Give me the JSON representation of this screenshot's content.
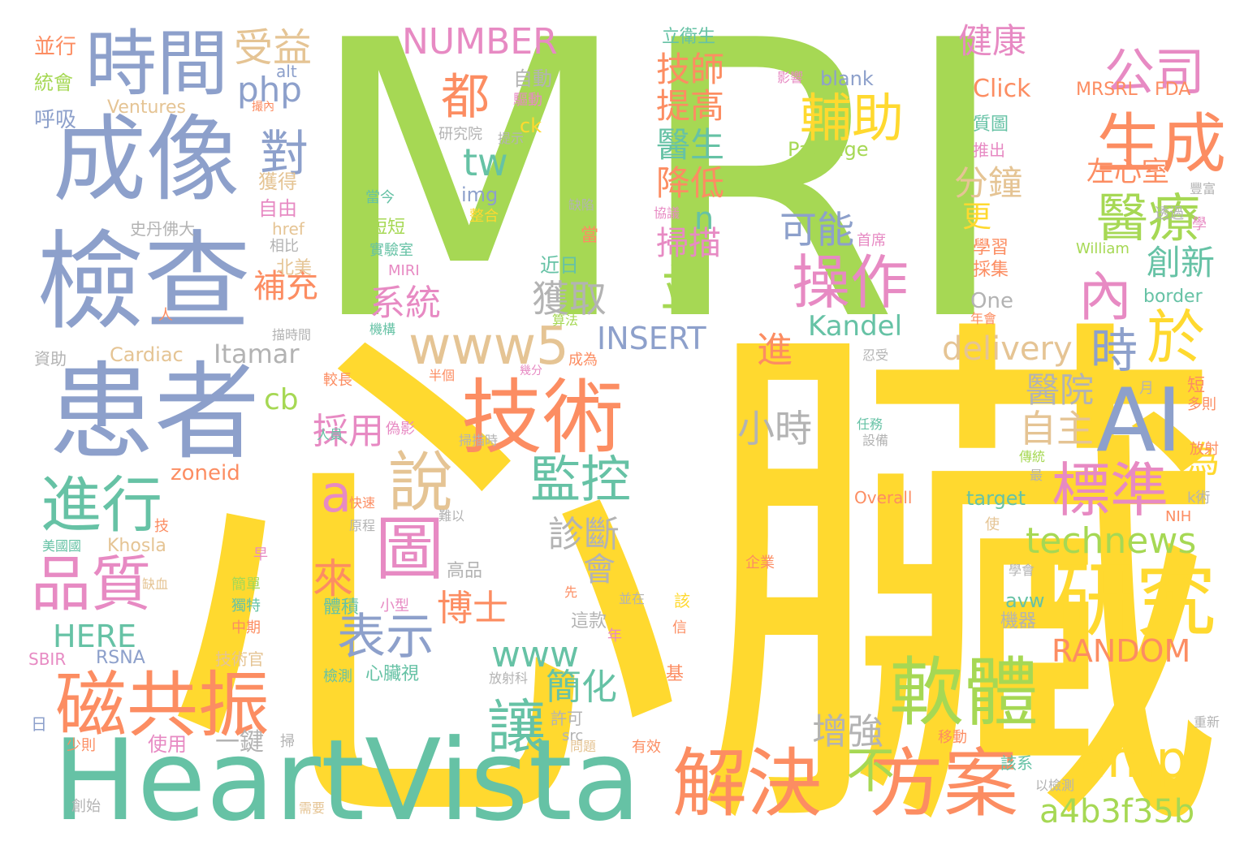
{
  "palette": {
    "green": "#a6d854",
    "yellow": "#ffd92f",
    "blue": "#8da0cb",
    "teal": "#66c2a5",
    "orange": "#fc8d62",
    "pink": "#e78ac3",
    "tan": "#e5c494",
    "gray": "#b3b3b3",
    "background": "#ffffff"
  },
  "words": [
    {
      "text": "MRI",
      "color": "green"
    },
    {
      "text": "心臟",
      "color": "yellow"
    },
    {
      "text": "HeartVista",
      "color": "teal"
    },
    {
      "text": "成像",
      "color": "blue"
    },
    {
      "text": "檢查",
      "color": "blue"
    },
    {
      "text": "患者",
      "color": "blue"
    },
    {
      "text": "時間",
      "color": "blue"
    },
    {
      "text": "技術",
      "color": "orange"
    },
    {
      "text": "AI",
      "color": "blue"
    },
    {
      "text": "研究",
      "color": "yellow"
    },
    {
      "text": "軟體",
      "color": "green"
    },
    {
      "text": "方案",
      "color": "orange"
    },
    {
      "text": "解決",
      "color": "orange"
    },
    {
      "text": "磁共振",
      "color": "orange"
    },
    {
      "text": "生成",
      "color": "orange"
    },
    {
      "text": "醫療",
      "color": "green"
    },
    {
      "text": "標準",
      "color": "pink"
    },
    {
      "text": "操作",
      "color": "pink"
    },
    {
      "text": "輔助",
      "color": "yellow"
    },
    {
      "text": "公司",
      "color": "pink"
    },
    {
      "text": "都",
      "color": "orange"
    },
    {
      "text": "對",
      "color": "blue"
    },
    {
      "text": "受益",
      "color": "tan"
    },
    {
      "text": "php",
      "color": "blue"
    },
    {
      "text": "NUMBER",
      "color": "pink"
    },
    {
      "text": "健康",
      "color": "pink"
    },
    {
      "text": "進行",
      "color": "teal"
    },
    {
      "text": "品質",
      "color": "pink"
    },
    {
      "text": "說",
      "color": "tan"
    },
    {
      "text": "a",
      "color": "pink"
    },
    {
      "text": "圖",
      "color": "pink"
    },
    {
      "text": "監控",
      "color": "teal"
    },
    {
      "text": "www5",
      "color": "tan"
    },
    {
      "text": "並",
      "color": "green"
    },
    {
      "text": "內",
      "color": "pink"
    },
    {
      "text": "於",
      "color": "yellow"
    },
    {
      "text": "時",
      "color": "blue"
    },
    {
      "text": "amp",
      "color": "yellow"
    },
    {
      "text": "a4b3f35b",
      "color": "green"
    },
    {
      "text": "technews",
      "color": "green"
    },
    {
      "text": "讓",
      "color": "teal"
    },
    {
      "text": "表示",
      "color": "blue"
    },
    {
      "text": "來",
      "color": "orange"
    },
    {
      "text": "HERE",
      "color": "teal"
    },
    {
      "text": "RANDOM",
      "color": "orange"
    },
    {
      "text": "INSERT",
      "color": "blue"
    },
    {
      "text": "Itamar",
      "color": "gray"
    },
    {
      "text": "Kandel",
      "color": "teal"
    },
    {
      "text": "delivery",
      "color": "tan"
    },
    {
      "text": "小時",
      "color": "gray"
    },
    {
      "text": "www",
      "color": "teal"
    },
    {
      "text": "cb",
      "color": "green"
    },
    {
      "text": "技師",
      "color": "orange"
    },
    {
      "text": "提高",
      "color": "orange"
    },
    {
      "text": "醫生",
      "color": "teal"
    },
    {
      "text": "降低",
      "color": "orange"
    },
    {
      "text": "n",
      "color": "teal"
    },
    {
      "text": "掃描",
      "color": "pink"
    },
    {
      "text": "可能",
      "color": "blue"
    },
    {
      "text": "系統",
      "color": "pink"
    },
    {
      "text": "獲取",
      "color": "gray"
    },
    {
      "text": "tw",
      "color": "teal"
    },
    {
      "text": "分鐘",
      "color": "tan"
    },
    {
      "text": "更",
      "color": "yellow"
    },
    {
      "text": "創新",
      "color": "teal"
    },
    {
      "text": "左心室",
      "color": "orange"
    },
    {
      "text": "自主",
      "color": "tan"
    },
    {
      "text": "醫院",
      "color": "gray"
    },
    {
      "text": "為",
      "color": "yellow"
    },
    {
      "text": "進",
      "color": "orange"
    },
    {
      "text": "採用",
      "color": "pink"
    },
    {
      "text": "診斷",
      "color": "gray"
    },
    {
      "text": "會",
      "color": "gray"
    },
    {
      "text": "博士",
      "color": "orange"
    },
    {
      "text": "簡化",
      "color": "teal"
    },
    {
      "text": "增強",
      "color": "gray"
    },
    {
      "text": "不",
      "color": "green"
    },
    {
      "text": "補充",
      "color": "orange"
    },
    {
      "text": "一鍵",
      "color": "gray"
    },
    {
      "text": "img",
      "color": "blue"
    },
    {
      "text": "秒",
      "color": "green"
    },
    {
      "text": "自動",
      "color": "gray"
    },
    {
      "text": "驅動",
      "color": "pink"
    },
    {
      "text": "ck",
      "color": "yellow"
    },
    {
      "text": "研究院",
      "color": "gray"
    },
    {
      "text": "提示",
      "color": "gray"
    },
    {
      "text": "Ventures",
      "color": "tan"
    },
    {
      "text": "並行",
      "color": "orange"
    },
    {
      "text": "統會",
      "color": "green"
    },
    {
      "text": "呼吸",
      "color": "blue"
    },
    {
      "text": "alt",
      "color": "blue"
    },
    {
      "text": "撮內",
      "color": "orange"
    },
    {
      "text": "立衛生",
      "color": "teal"
    },
    {
      "text": "blank",
      "color": "blue"
    },
    {
      "text": "Click",
      "color": "orange"
    },
    {
      "text": "Package",
      "color": "green"
    },
    {
      "text": "MRSRL",
      "color": "orange"
    },
    {
      "text": "FDA",
      "color": "orange"
    },
    {
      "text": "影響",
      "color": "pink"
    },
    {
      "text": "質圖",
      "color": "teal"
    },
    {
      "text": "推出",
      "color": "pink"
    },
    {
      "text": "豐富",
      "color": "gray"
    },
    {
      "text": "獲得",
      "color": "tan"
    },
    {
      "text": "自由",
      "color": "pink"
    },
    {
      "text": "史丹佛大",
      "color": "gray"
    },
    {
      "text": "href",
      "color": "tan"
    },
    {
      "text": "相比",
      "color": "gray"
    },
    {
      "text": "北美",
      "color": "tan"
    },
    {
      "text": "當今",
      "color": "teal"
    },
    {
      "text": "整合",
      "color": "yellow"
    },
    {
      "text": "短短",
      "color": "green"
    },
    {
      "text": "實驗室",
      "color": "teal"
    },
    {
      "text": "MIRI",
      "color": "pink"
    },
    {
      "text": "缺陷",
      "color": "gray"
    },
    {
      "text": "協議",
      "color": "pink"
    },
    {
      "text": "當",
      "color": "orange"
    },
    {
      "text": "近日",
      "color": "teal"
    },
    {
      "text": "首席",
      "color": "pink"
    },
    {
      "text": "透過",
      "color": "gray"
    },
    {
      "text": "學",
      "color": "pink"
    },
    {
      "text": "William",
      "color": "green"
    },
    {
      "text": "學習",
      "color": "orange"
    },
    {
      "text": "採集",
      "color": "orange"
    },
    {
      "text": "One",
      "color": "gray"
    },
    {
      "text": "border",
      "color": "teal"
    },
    {
      "text": "年會",
      "color": "orange"
    },
    {
      "text": "人",
      "color": "orange"
    },
    {
      "text": "描時間",
      "color": "gray"
    },
    {
      "text": "資助",
      "color": "gray"
    },
    {
      "text": "Cardiac",
      "color": "tan"
    },
    {
      "text": "機構",
      "color": "teal"
    },
    {
      "text": "算法",
      "color": "green"
    },
    {
      "text": "成為",
      "color": "orange"
    },
    {
      "text": "忍受",
      "color": "gray"
    },
    {
      "text": "半個",
      "color": "orange"
    },
    {
      "text": "幾分",
      "color": "pink"
    },
    {
      "text": "較長",
      "color": "orange"
    },
    {
      "text": "月",
      "color": "gray"
    },
    {
      "text": "短",
      "color": "orange"
    },
    {
      "text": "多則",
      "color": "orange"
    },
    {
      "text": "zoneid",
      "color": "orange"
    },
    {
      "text": "偽影",
      "color": "pink"
    },
    {
      "text": "任務",
      "color": "teal"
    },
    {
      "text": "設備",
      "color": "gray"
    },
    {
      "text": "人員",
      "color": "teal"
    },
    {
      "text": "掃描時",
      "color": "gray"
    },
    {
      "text": "傳統",
      "color": "green"
    },
    {
      "text": "放射",
      "color": "orange"
    },
    {
      "text": "最",
      "color": "gray"
    },
    {
      "text": "Overall",
      "color": "orange"
    },
    {
      "text": "target",
      "color": "teal"
    },
    {
      "text": "k術",
      "color": "gray"
    },
    {
      "text": "NIH",
      "color": "orange"
    },
    {
      "text": "技",
      "color": "orange"
    },
    {
      "text": "快速",
      "color": "orange"
    },
    {
      "text": "原程",
      "color": "gray"
    },
    {
      "text": "難以",
      "color": "gray"
    },
    {
      "text": "使",
      "color": "tan"
    },
    {
      "text": "美國國",
      "color": "teal"
    },
    {
      "text": "Khosla",
      "color": "tan"
    },
    {
      "text": "早",
      "color": "pink"
    },
    {
      "text": "缺血",
      "color": "tan"
    },
    {
      "text": "高品",
      "color": "gray"
    },
    {
      "text": "企業",
      "color": "orange"
    },
    {
      "text": "學會",
      "color": "gray"
    },
    {
      "text": "先",
      "color": "orange"
    },
    {
      "text": "簡單",
      "color": "green"
    },
    {
      "text": "體積",
      "color": "teal"
    },
    {
      "text": "小型",
      "color": "pink"
    },
    {
      "text": "並在",
      "color": "gray"
    },
    {
      "text": "該",
      "color": "yellow"
    },
    {
      "text": "avw",
      "color": "teal"
    },
    {
      "text": "獨特",
      "color": "teal"
    },
    {
      "text": "中期",
      "color": "orange"
    },
    {
      "text": "這款",
      "color": "gray"
    },
    {
      "text": "機器",
      "color": "gray"
    },
    {
      "text": "信",
      "color": "orange"
    },
    {
      "text": "年",
      "color": "pink"
    },
    {
      "text": "SBIR",
      "color": "pink"
    },
    {
      "text": "RSNA",
      "color": "blue"
    },
    {
      "text": "技術官",
      "color": "tan"
    },
    {
      "text": "檢測",
      "color": "teal"
    },
    {
      "text": "心臟視",
      "color": "teal"
    },
    {
      "text": "基",
      "color": "orange"
    },
    {
      "text": "放射科",
      "color": "gray"
    },
    {
      "text": "許可",
      "color": "gray"
    },
    {
      "text": "src",
      "color": "gray"
    },
    {
      "text": "該系",
      "color": "teal"
    },
    {
      "text": "日",
      "color": "blue"
    },
    {
      "text": "少則",
      "color": "orange"
    },
    {
      "text": "使用",
      "color": "pink"
    },
    {
      "text": "掃",
      "color": "gray"
    },
    {
      "text": "問題",
      "color": "tan"
    },
    {
      "text": "有效",
      "color": "orange"
    },
    {
      "text": "移動",
      "color": "orange"
    },
    {
      "text": "重新",
      "color": "gray"
    },
    {
      "text": "以檢測",
      "color": "gray"
    },
    {
      "text": "創始",
      "color": "gray"
    },
    {
      "text": "需要",
      "color": "tan"
    }
  ]
}
